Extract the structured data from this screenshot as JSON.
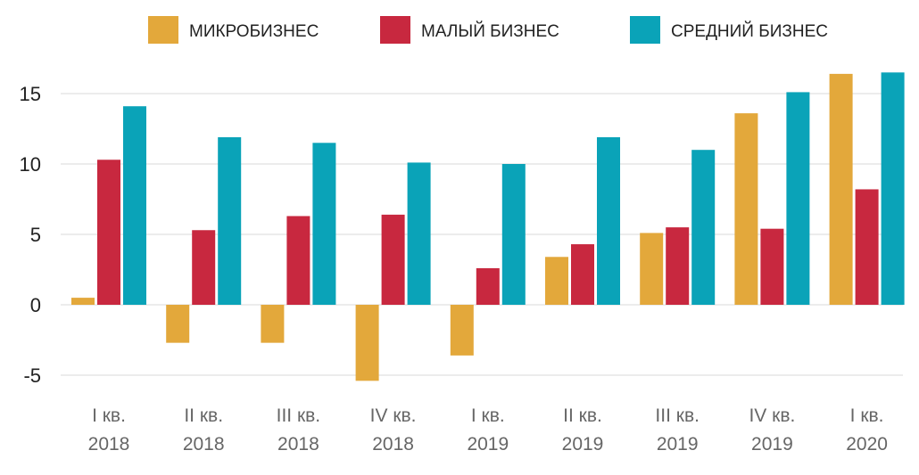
{
  "chart_data": {
    "type": "bar",
    "categories": [
      [
        "I кв.",
        "2018"
      ],
      [
        "II кв.",
        "2018"
      ],
      [
        "III кв.",
        "2018"
      ],
      [
        "IV кв.",
        "2018"
      ],
      [
        "I кв.",
        "2019"
      ],
      [
        "II кв.",
        "2019"
      ],
      [
        "III кв.",
        "2019"
      ],
      [
        "IV кв.",
        "2019"
      ],
      [
        "I кв.",
        "2020"
      ]
    ],
    "series": [
      {
        "name": "МИКРОБИЗНЕС",
        "color": "#E3A83B",
        "values": [
          0.5,
          -2.7,
          -2.7,
          -5.4,
          -3.6,
          3.4,
          5.1,
          13.6,
          16.4
        ]
      },
      {
        "name": "МАЛЫЙ БИЗНЕС",
        "color": "#C8283F",
        "values": [
          10.3,
          5.3,
          6.3,
          6.4,
          2.6,
          4.3,
          5.5,
          5.4,
          8.2
        ]
      },
      {
        "name": "СРЕДНИЙ БИЗНЕС",
        "color": "#0AA3B8",
        "values": [
          14.1,
          11.9,
          11.5,
          10.1,
          10.0,
          11.9,
          11.0,
          15.1,
          16.5
        ]
      }
    ],
    "yticks": [
      15,
      10,
      5,
      0,
      -5
    ],
    "ytick_labels": [
      "15",
      "10",
      "5",
      "0",
      "-5"
    ],
    "ylim": [
      -6.5,
      17.5
    ],
    "grid": true,
    "legend_position": "top",
    "title": "",
    "xlabel": "",
    "ylabel": ""
  }
}
